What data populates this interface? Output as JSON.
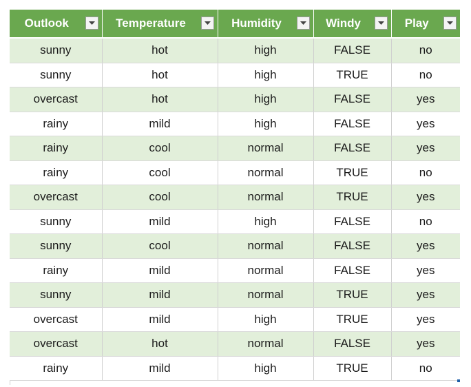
{
  "table": {
    "columns": [
      {
        "label": "Outlook"
      },
      {
        "label": "Temperature"
      },
      {
        "label": "Humidity"
      },
      {
        "label": "Windy"
      },
      {
        "label": "Play"
      }
    ],
    "rows": [
      [
        "sunny",
        "hot",
        "high",
        "FALSE",
        "no"
      ],
      [
        "sunny",
        "hot",
        "high",
        "TRUE",
        "no"
      ],
      [
        "overcast",
        "hot",
        "high",
        "FALSE",
        "yes"
      ],
      [
        "rainy",
        "mild",
        "high",
        "FALSE",
        "yes"
      ],
      [
        "rainy",
        "cool",
        "normal",
        "FALSE",
        "yes"
      ],
      [
        "rainy",
        "cool",
        "normal",
        "TRUE",
        "no"
      ],
      [
        "overcast",
        "cool",
        "normal",
        "TRUE",
        "yes"
      ],
      [
        "sunny",
        "mild",
        "high",
        "FALSE",
        "no"
      ],
      [
        "sunny",
        "cool",
        "normal",
        "FALSE",
        "yes"
      ],
      [
        "rainy",
        "mild",
        "normal",
        "FALSE",
        "yes"
      ],
      [
        "sunny",
        "mild",
        "normal",
        "TRUE",
        "yes"
      ],
      [
        "overcast",
        "mild",
        "high",
        "TRUE",
        "yes"
      ],
      [
        "overcast",
        "hot",
        "normal",
        "FALSE",
        "yes"
      ],
      [
        "rainy",
        "mild",
        "high",
        "TRUE",
        "no"
      ]
    ]
  },
  "icons": {
    "filter_dropdown": "chevron-down-icon"
  },
  "colors": {
    "header_bg": "#6aa84f",
    "header_text": "#ffffff",
    "band_row_bg": "#e2efda",
    "plain_row_bg": "#ffffff"
  }
}
